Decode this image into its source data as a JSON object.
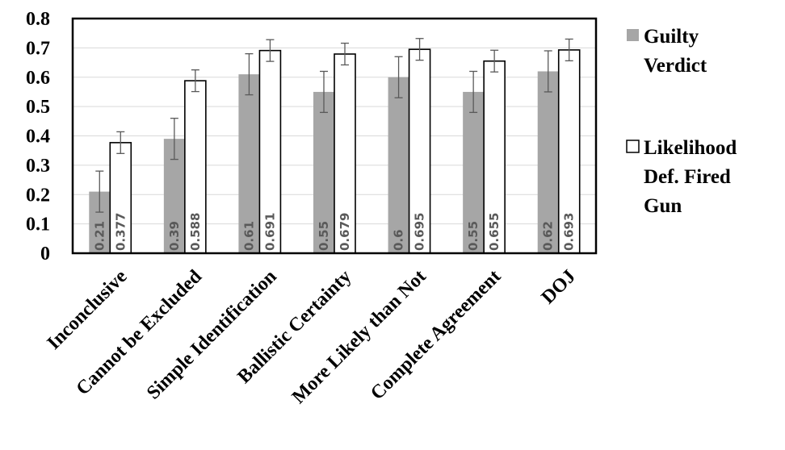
{
  "chart_data": {
    "type": "bar",
    "categories": [
      "Inconclusive",
      "Cannot be Excluded",
      "Simple Identification",
      "Ballistic Certainty",
      "More Likely than Not",
      "Complete Agreement",
      "DOJ"
    ],
    "series": [
      {
        "name": "Guilty Verdict",
        "legend_lines": [
          "Guilty",
          "Verdict"
        ],
        "color": "#a6a6a6",
        "values": [
          0.21,
          0.39,
          0.61,
          0.55,
          0.6,
          0.55,
          0.62
        ],
        "labels": [
          "0.21",
          "0.39",
          "0.61",
          "0.55",
          "0.6",
          "0.55",
          "0.62"
        ],
        "error": [
          0.07,
          0.07,
          0.07,
          0.07,
          0.07,
          0.07,
          0.07
        ]
      },
      {
        "name": "Likelihood Def. Fired Gun",
        "legend_lines": [
          "Likelihood",
          "Def. Fired",
          "Gun"
        ],
        "color": "#ffffff",
        "values": [
          0.377,
          0.588,
          0.691,
          0.679,
          0.695,
          0.655,
          0.693
        ],
        "labels": [
          "0.377",
          "0.588",
          "0.691",
          "0.679",
          "0.695",
          "0.655",
          "0.693"
        ],
        "error": [
          0.037,
          0.037,
          0.037,
          0.037,
          0.037,
          0.037,
          0.037
        ]
      }
    ],
    "yticks": [
      "0",
      "0.1",
      "0.2",
      "0.3",
      "0.4",
      "0.5",
      "0.6",
      "0.7",
      "0.8"
    ],
    "ylim": [
      0,
      0.8
    ],
    "grid": true,
    "legend": "right",
    "title": "",
    "xlabel": "",
    "ylabel": ""
  }
}
